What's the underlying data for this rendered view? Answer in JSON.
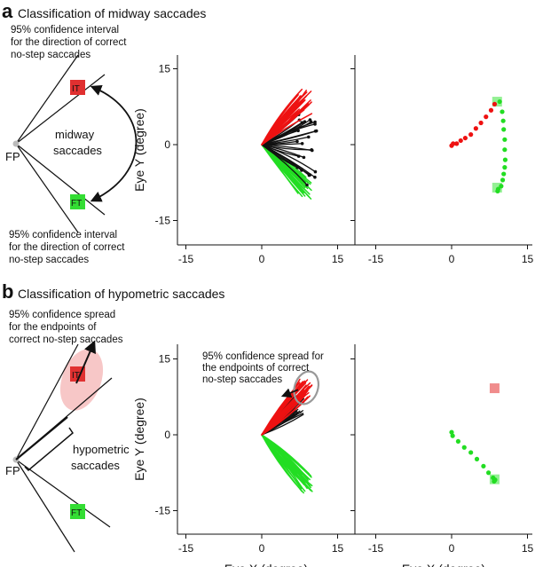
{
  "figure": {
    "panel_a": {
      "letter": "a",
      "title": "Classification of midway saccades",
      "note_top": [
        "95% confidence interval",
        "for the direction of correct",
        "no-step saccades"
      ],
      "note_bottom": [
        "95% confidence interval",
        "for the direction of correct",
        "no-step saccades"
      ],
      "schematic_label": [
        "midway",
        "saccades"
      ],
      "fp_label": "FP",
      "it_label": "IT",
      "ft_label": "FT"
    },
    "panel_b": {
      "letter": "b",
      "title": "Classification of hypometric saccades",
      "note_top": [
        "95% confidence spread",
        "for the endpoints of",
        "correct no-step saccades"
      ],
      "plot_annotation": [
        "95% confidence spread for",
        "the endpoints of correct",
        "no-step saccades"
      ],
      "schematic_label": [
        "hypometric",
        "saccades"
      ],
      "fp_label": "FP",
      "it_label": "IT",
      "ft_label": "FT"
    },
    "axes": {
      "xlabel": "Eye X (degree)",
      "ylabel": "Eye Y (degree)",
      "ticks": [
        "-15",
        "0",
        "15"
      ]
    },
    "colors": {
      "red": "#ee1111",
      "green": "#22dd22",
      "black": "#111111",
      "target_red": "#e03030",
      "target_green": "#33cc33"
    }
  },
  "chart_data": [
    {
      "type": "line",
      "panel": "a-left",
      "xlabel": "",
      "ylabel": "Eye Y (degree)",
      "xlim": [
        -18,
        18
      ],
      "ylim": [
        -18,
        18
      ],
      "xticks": [
        -15,
        0,
        15
      ],
      "yticks": [
        -15,
        0,
        15
      ],
      "series": [
        {
          "color": "red",
          "n_traces": 25,
          "end_x_range": [
            7,
            10
          ],
          "end_y_range": [
            6,
            11
          ]
        },
        {
          "color": "black",
          "n_traces": 25,
          "end_x_range": [
            7,
            11
          ],
          "end_y_range": [
            -8,
            6
          ]
        },
        {
          "color": "green",
          "n_traces": 25,
          "end_x_range": [
            7,
            10
          ],
          "end_y_range": [
            -11,
            -6
          ]
        }
      ]
    },
    {
      "type": "scatter",
      "panel": "a-right",
      "xlabel": "",
      "ylabel": "",
      "xlim": [
        -18,
        18
      ],
      "ylim": [
        -18,
        18
      ],
      "xticks": [
        -15,
        0,
        15
      ],
      "yticks": [
        -15,
        0,
        15
      ],
      "targets": [
        {
          "x": 9,
          "y": 8.5,
          "color": "green"
        },
        {
          "x": 9,
          "y": -8.5,
          "color": "green"
        }
      ],
      "series": [
        {
          "color": "red",
          "points": [
            [
              0,
              -0.2
            ],
            [
              0.3,
              0.2
            ],
            [
              1,
              0.2
            ],
            [
              1.8,
              0.8
            ],
            [
              2.7,
              1.3
            ],
            [
              3.8,
              2
            ],
            [
              4.8,
              3.2
            ],
            [
              5.8,
              4.3
            ],
            [
              6.8,
              5.5
            ],
            [
              7.8,
              6.8
            ],
            [
              8.5,
              8
            ]
          ]
        },
        {
          "color": "green",
          "points": [
            [
              9.5,
              8.5
            ],
            [
              10,
              6.5
            ],
            [
              10.2,
              4.7
            ],
            [
              10.3,
              3
            ],
            [
              10.5,
              1
            ],
            [
              10.5,
              -1
            ],
            [
              10.6,
              -3
            ],
            [
              10.5,
              -4.5
            ],
            [
              10.3,
              -5.8
            ],
            [
              10.1,
              -7
            ],
            [
              9.8,
              -8.2
            ],
            [
              9.2,
              -8.8
            ],
            [
              9.1,
              -9.2
            ]
          ]
        }
      ]
    },
    {
      "type": "line",
      "panel": "b-left",
      "xlabel": "Eye X (degree)",
      "ylabel": "Eye Y (degree)",
      "xlim": [
        -18,
        18
      ],
      "ylim": [
        -18,
        18
      ],
      "xticks": [
        -15,
        0,
        15
      ],
      "yticks": [
        -15,
        0,
        15
      ],
      "confidence_ellipse": {
        "cx": 8.8,
        "cy": 9.3,
        "rx": 2.3,
        "ry": 3.3
      },
      "series": [
        {
          "color": "red",
          "n_traces": 25,
          "end_x_range": [
            7.5,
            10
          ],
          "end_y_range": [
            7,
            11
          ]
        },
        {
          "color": "black",
          "n_traces": 25,
          "end_x_range": [
            5,
            8.5
          ],
          "end_y_range": [
            4,
            8.5
          ]
        },
        {
          "color": "green",
          "n_traces": 30,
          "end_x_range": [
            7.5,
            10
          ],
          "end_y_range": [
            -11.5,
            -7.5
          ]
        }
      ]
    },
    {
      "type": "scatter",
      "panel": "b-right",
      "xlabel": "Eye X (degree)",
      "ylabel": "",
      "xlim": [
        -18,
        18
      ],
      "ylim": [
        -18,
        18
      ],
      "xticks": [
        -15,
        0,
        15
      ],
      "yticks": [
        -15,
        0,
        15
      ],
      "targets": [
        {
          "x": 8.5,
          "y": 9.2,
          "color": "red"
        },
        {
          "x": 8.5,
          "y": -8.8,
          "color": "green"
        }
      ],
      "series": [
        {
          "color": "green",
          "points": [
            [
              0,
              0.5
            ],
            [
              0.2,
              -0.2
            ],
            [
              1.3,
              -1.3
            ],
            [
              2.5,
              -2.5
            ],
            [
              3.8,
              -3.5
            ],
            [
              5,
              -4.8
            ],
            [
              6.3,
              -6.2
            ],
            [
              7.3,
              -7.5
            ],
            [
              8.2,
              -8.5
            ],
            [
              8.6,
              -8.9
            ],
            [
              8.4,
              -9.2
            ]
          ]
        }
      ]
    }
  ]
}
